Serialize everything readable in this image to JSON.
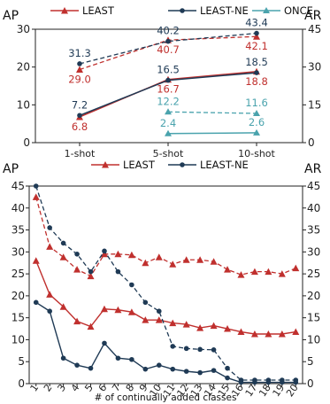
{
  "colors": {
    "least": "#c0302e",
    "least_ne": "#1f3a55",
    "once": "#4aa3ad"
  },
  "chart_data": [
    {
      "type": "line",
      "categories": [
        "1-shot",
        "5-shot",
        "10-shot"
      ],
      "ylabel_left": "AP",
      "ylabel_right": "AR",
      "ylim": [
        0,
        30
      ],
      "y2lim": [
        0,
        45
      ],
      "yticks": [
        0,
        10,
        20,
        30
      ],
      "y2ticks": [
        0,
        15,
        30,
        45
      ],
      "legend": [
        "LEAST",
        "LEAST-NE",
        "ONCE"
      ],
      "series": [
        {
          "name": "LEAST",
          "metric": "AP",
          "axis": "left",
          "style": "solid",
          "values": [
            6.8,
            16.7,
            18.8
          ]
        },
        {
          "name": "LEAST-NE",
          "metric": "AP",
          "axis": "left",
          "style": "solid",
          "values": [
            7.2,
            16.5,
            18.5
          ]
        },
        {
          "name": "LEAST",
          "metric": "AR",
          "axis": "right",
          "style": "dashed",
          "values": [
            29.0,
            40.7,
            42.1
          ]
        },
        {
          "name": "LEAST-NE",
          "metric": "AR",
          "axis": "right",
          "style": "dashed",
          "values": [
            31.3,
            40.2,
            43.4
          ]
        },
        {
          "name": "ONCE",
          "metric": "AP",
          "axis": "left",
          "style": "solid",
          "values": [
            null,
            2.4,
            2.6
          ]
        },
        {
          "name": "ONCE",
          "metric": "AR",
          "axis": "right",
          "style": "dashed",
          "values": [
            null,
            12.2,
            11.6
          ]
        }
      ]
    },
    {
      "type": "line",
      "x": [
        1,
        2,
        3,
        4,
        5,
        6,
        7,
        8,
        9,
        10,
        11,
        12,
        13,
        14,
        15,
        16,
        17,
        18,
        19,
        20
      ],
      "xlabel": "# of continually added classes",
      "ylabel_left": "AP",
      "ylabel_right": "AR",
      "ylim": [
        0,
        45
      ],
      "y2lim": [
        0,
        45
      ],
      "yticks": [
        0,
        5,
        10,
        15,
        20,
        25,
        30,
        35,
        40,
        45
      ],
      "y2ticks": [
        0,
        5,
        10,
        15,
        20,
        25,
        30,
        35,
        40,
        45
      ],
      "legend": [
        "LEAST",
        "LEAST-NE"
      ],
      "series": [
        {
          "name": "LEAST",
          "metric": "AP",
          "style": "solid",
          "values": [
            28,
            20.3,
            17.5,
            14.2,
            13,
            17,
            16.8,
            16.3,
            14.5,
            14.5,
            13.8,
            13.5,
            12.7,
            13.2,
            12.5,
            11.8,
            11.3,
            11.3,
            11.3,
            11.8
          ]
        },
        {
          "name": "LEAST-NE",
          "metric": "AP",
          "style": "solid",
          "values": [
            18.5,
            16.5,
            5.8,
            4.2,
            3.5,
            9.2,
            5.8,
            5.5,
            3.3,
            4.2,
            3.3,
            2.8,
            2.5,
            3.0,
            1.3,
            0.3,
            0.3,
            0.3,
            0.3,
            0.3
          ]
        },
        {
          "name": "LEAST",
          "metric": "AR",
          "style": "dashed",
          "values": [
            42.5,
            31.2,
            28.8,
            26,
            24.5,
            29.5,
            29.5,
            29.3,
            27.5,
            28.8,
            27.2,
            28.2,
            28.2,
            27.8,
            26,
            24.8,
            25.5,
            25.5,
            25,
            26.3
          ]
        },
        {
          "name": "LEAST-NE",
          "metric": "AR",
          "style": "dashed",
          "values": [
            45,
            35.5,
            32,
            29.5,
            25.5,
            30.2,
            25.5,
            22.5,
            18.5,
            16.5,
            8.5,
            8,
            7.8,
            7.7,
            3.5,
            0.8,
            0.8,
            0.8,
            0.8,
            0.8
          ]
        }
      ]
    }
  ]
}
